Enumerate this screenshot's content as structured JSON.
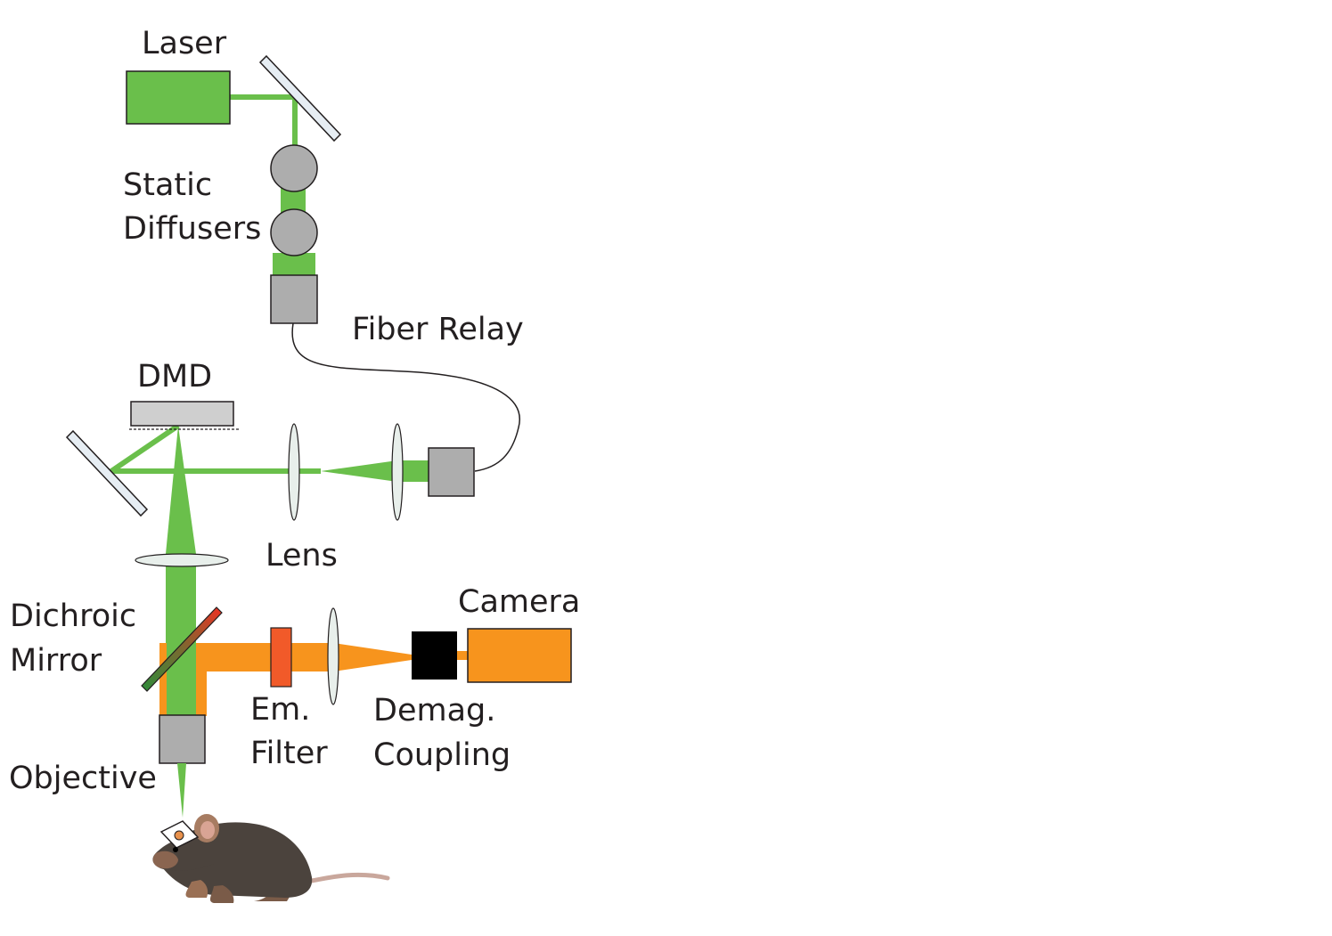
{
  "labels": {
    "laser": "Laser",
    "static_diffusers_1": "Static",
    "static_diffusers_2": "Diffusers",
    "fiber_relay": "Fiber Relay",
    "dmd": "DMD",
    "lens": "Lens",
    "camera": "Camera",
    "dichroic_1": "Dichroic",
    "dichroic_2": "Mirror",
    "em_filter_1": "Em.",
    "em_filter_2": "Filter",
    "demag_1": "Demag.",
    "demag_2": "Coupling",
    "objective": "Objective"
  },
  "colors": {
    "excitation_beam": "#6abf4b",
    "emission_beam": "#f7941d",
    "component_gray": "#adadad",
    "mirror": "#e6edf3",
    "lens": "#e8efeb",
    "em_filter": "#f15a29",
    "demag_coupler": "#000000",
    "mouse_body": "#4b433d"
  },
  "icons": {
    "animal": "mouse-icon"
  }
}
